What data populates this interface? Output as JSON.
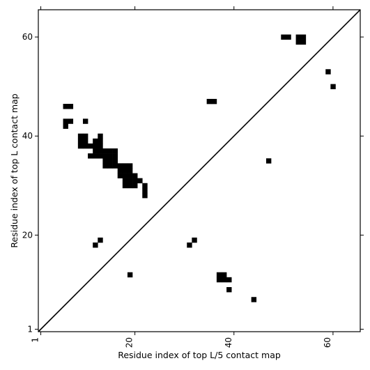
{
  "chart_data": {
    "type": "heatmap",
    "title": "",
    "xlabel": "Residue index of top L/5 contact map",
    "ylabel": "Residue index of top L contact map",
    "xlim": [
      0.5,
      65.5
    ],
    "ylim": [
      0.5,
      65.5
    ],
    "xticks": [
      1,
      20,
      40,
      60
    ],
    "yticks": [
      1,
      20,
      40,
      60
    ],
    "x_tick_labels": [
      "1",
      "20",
      "40",
      "60"
    ],
    "y_tick_labels": [
      "1",
      "20",
      "40",
      "60"
    ],
    "x_tick_rotation": -90,
    "grid": false,
    "legend": "none",
    "diagonal": true,
    "contact_color": "#000000",
    "background_color": "#ffffff",
    "contacts": [
      {
        "x": 6,
        "y": 46
      },
      {
        "x": 7,
        "y": 46
      },
      {
        "x": 6,
        "y": 43
      },
      {
        "x": 7,
        "y": 43
      },
      {
        "x": 6,
        "y": 42
      },
      {
        "x": 10,
        "y": 43
      },
      {
        "x": 9,
        "y": 40
      },
      {
        "x": 10,
        "y": 40
      },
      {
        "x": 13,
        "y": 40
      },
      {
        "x": 9,
        "y": 39
      },
      {
        "x": 10,
        "y": 39
      },
      {
        "x": 12,
        "y": 39
      },
      {
        "x": 13,
        "y": 39
      },
      {
        "x": 9,
        "y": 38
      },
      {
        "x": 10,
        "y": 38
      },
      {
        "x": 11,
        "y": 38
      },
      {
        "x": 12,
        "y": 38
      },
      {
        "x": 13,
        "y": 38
      },
      {
        "x": 12,
        "y": 37
      },
      {
        "x": 13,
        "y": 37
      },
      {
        "x": 14,
        "y": 37
      },
      {
        "x": 15,
        "y": 37
      },
      {
        "x": 16,
        "y": 37
      },
      {
        "x": 11,
        "y": 36
      },
      {
        "x": 12,
        "y": 36
      },
      {
        "x": 13,
        "y": 36
      },
      {
        "x": 14,
        "y": 36
      },
      {
        "x": 15,
        "y": 36
      },
      {
        "x": 16,
        "y": 36
      },
      {
        "x": 14,
        "y": 35
      },
      {
        "x": 15,
        "y": 35
      },
      {
        "x": 16,
        "y": 35
      },
      {
        "x": 14,
        "y": 34
      },
      {
        "x": 15,
        "y": 34
      },
      {
        "x": 16,
        "y": 34
      },
      {
        "x": 17,
        "y": 34
      },
      {
        "x": 18,
        "y": 34
      },
      {
        "x": 19,
        "y": 34
      },
      {
        "x": 17,
        "y": 33
      },
      {
        "x": 18,
        "y": 33
      },
      {
        "x": 19,
        "y": 33
      },
      {
        "x": 17,
        "y": 32
      },
      {
        "x": 18,
        "y": 32
      },
      {
        "x": 19,
        "y": 32
      },
      {
        "x": 20,
        "y": 32
      },
      {
        "x": 18,
        "y": 31
      },
      {
        "x": 19,
        "y": 31
      },
      {
        "x": 20,
        "y": 31
      },
      {
        "x": 21,
        "y": 31
      },
      {
        "x": 18,
        "y": 30
      },
      {
        "x": 19,
        "y": 30
      },
      {
        "x": 20,
        "y": 30
      },
      {
        "x": 22,
        "y": 30
      },
      {
        "x": 22,
        "y": 29
      },
      {
        "x": 22,
        "y": 28
      },
      {
        "x": 35,
        "y": 47
      },
      {
        "x": 36,
        "y": 47
      },
      {
        "x": 50,
        "y": 60
      },
      {
        "x": 51,
        "y": 60
      },
      {
        "x": 53,
        "y": 60
      },
      {
        "x": 54,
        "y": 60
      },
      {
        "x": 53,
        "y": 59
      },
      {
        "x": 54,
        "y": 59
      },
      {
        "x": 59,
        "y": 53
      },
      {
        "x": 60,
        "y": 50
      },
      {
        "x": 47,
        "y": 35
      },
      {
        "x": 12,
        "y": 18
      },
      {
        "x": 13,
        "y": 19
      },
      {
        "x": 31,
        "y": 18
      },
      {
        "x": 32,
        "y": 19
      },
      {
        "x": 19,
        "y": 12
      },
      {
        "x": 37,
        "y": 12
      },
      {
        "x": 38,
        "y": 12
      },
      {
        "x": 37,
        "y": 11
      },
      {
        "x": 38,
        "y": 11
      },
      {
        "x": 39,
        "y": 11
      },
      {
        "x": 39,
        "y": 9
      },
      {
        "x": 44,
        "y": 7
      }
    ]
  }
}
